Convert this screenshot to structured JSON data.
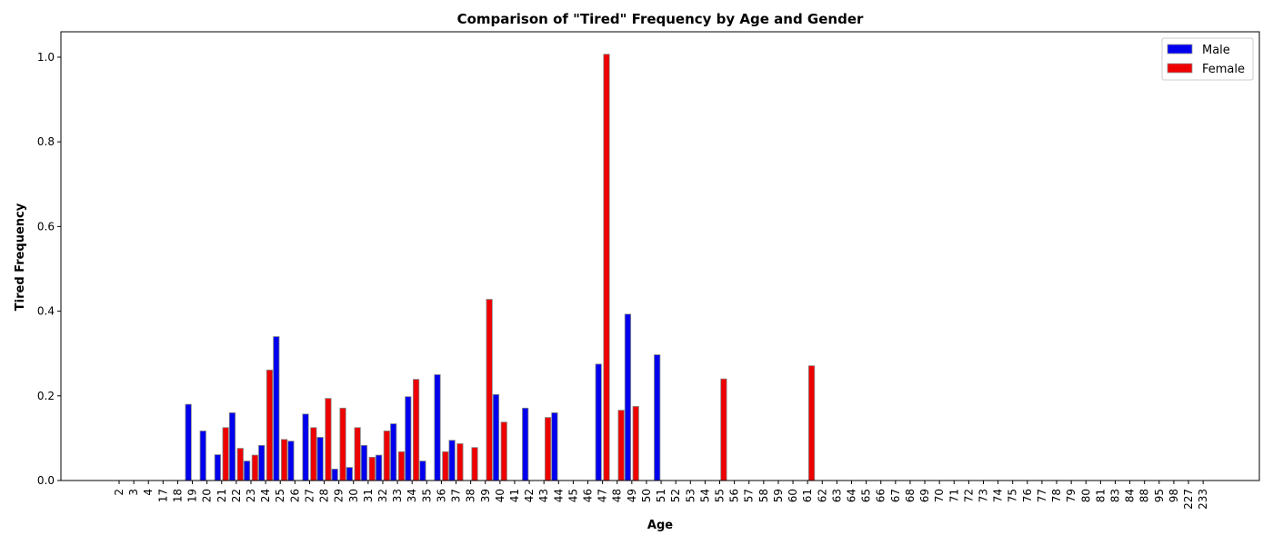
{
  "chart_data": {
    "type": "bar",
    "title": "Comparison of \"Tired\" Frequency by Age and Gender",
    "xlabel": "Age",
    "ylabel": "Tired Frequency",
    "ylim": [
      0,
      1.06
    ],
    "yticks": [
      "0.0",
      "0.2",
      "0.4",
      "0.6",
      "0.8",
      "1.0"
    ],
    "legend_position": "top-right",
    "categories": [
      "2",
      "3",
      "4",
      "17",
      "18",
      "19",
      "20",
      "21",
      "22",
      "23",
      "24",
      "25",
      "26",
      "27",
      "28",
      "29",
      "30",
      "31",
      "32",
      "33",
      "34",
      "35",
      "36",
      "37",
      "38",
      "39",
      "40",
      "41",
      "42",
      "43",
      "44",
      "45",
      "46",
      "47",
      "48",
      "49",
      "50",
      "51",
      "52",
      "53",
      "54",
      "55",
      "56",
      "57",
      "58",
      "59",
      "60",
      "61",
      "62",
      "63",
      "64",
      "65",
      "66",
      "67",
      "68",
      "69",
      "70",
      "71",
      "72",
      "73",
      "74",
      "75",
      "76",
      "77",
      "78",
      "79",
      "80",
      "81",
      "83",
      "84",
      "88",
      "95",
      "98",
      "227",
      "233"
    ],
    "series": [
      {
        "name": "Male",
        "color": "#0000ee",
        "values": [
          0,
          0,
          0,
          0,
          0,
          0.18,
          0.117,
          0.061,
          0.16,
          0.046,
          0.083,
          0.34,
          0.093,
          0.157,
          0.102,
          0.027,
          0.031,
          0.083,
          0.06,
          0.134,
          0.198,
          0.046,
          0.25,
          0.095,
          0,
          0,
          0.203,
          0,
          0.171,
          0,
          0.16,
          0,
          0,
          0.275,
          0,
          0.393,
          0,
          0.297,
          0,
          0,
          0,
          0,
          0,
          0,
          0,
          0,
          0,
          0,
          0,
          0,
          0,
          0,
          0,
          0,
          0,
          0,
          0,
          0,
          0,
          0,
          0,
          0,
          0,
          0,
          0,
          0,
          0,
          0,
          0,
          0,
          0,
          0,
          0,
          0,
          0
        ]
      },
      {
        "name": "Female",
        "color": "#ee0000",
        "values": [
          0,
          0,
          0,
          0,
          0,
          0,
          0,
          0.125,
          0.076,
          0.06,
          0.261,
          0.097,
          0,
          0.125,
          0.194,
          0.171,
          0.125,
          0.055,
          0.117,
          0.068,
          0.239,
          0,
          0.068,
          0.087,
          0.078,
          0.428,
          0.138,
          0,
          0,
          0.149,
          0,
          0,
          0,
          1.007,
          0.166,
          0.175,
          0,
          0,
          0,
          0,
          0,
          0.24,
          0,
          0,
          0,
          0,
          0,
          0.271,
          0,
          0,
          0,
          0,
          0,
          0,
          0,
          0,
          0,
          0,
          0,
          0,
          0,
          0,
          0,
          0,
          0,
          0,
          0,
          0,
          0,
          0,
          0,
          0,
          0,
          0,
          0
        ]
      }
    ]
  }
}
